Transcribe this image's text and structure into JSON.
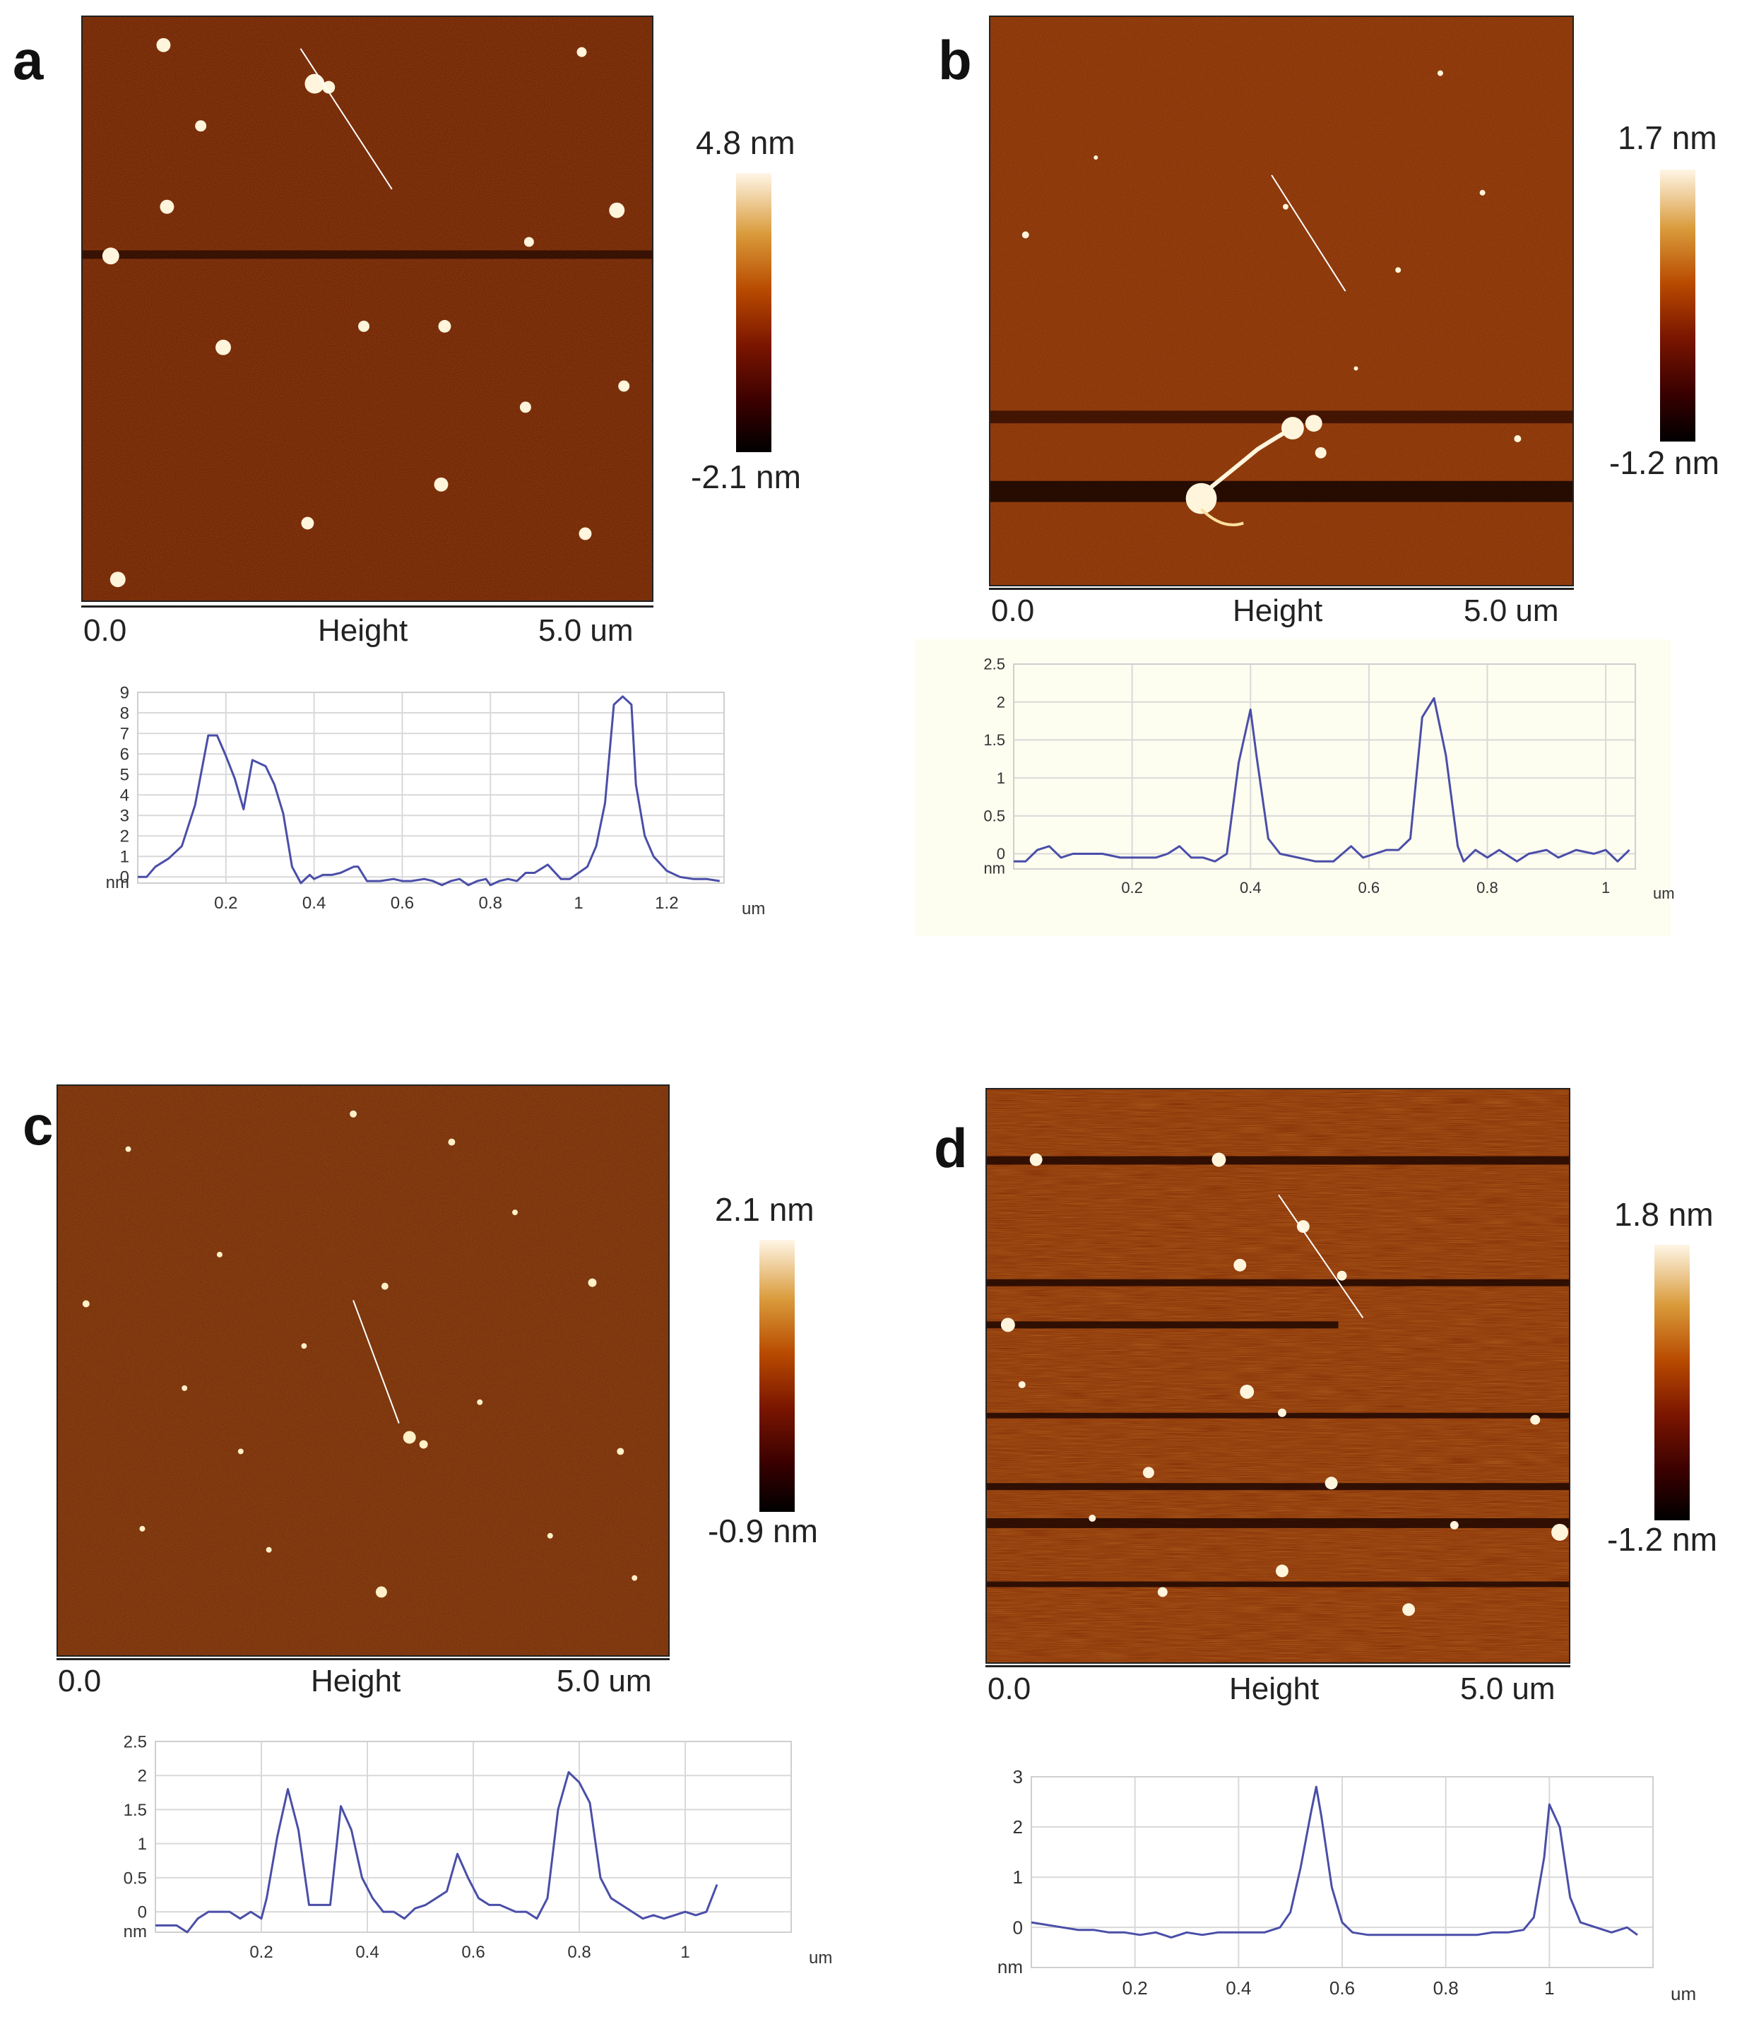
{
  "panels": [
    {
      "letter": "a",
      "image": {
        "scale_start": "0.0",
        "scale_mid": "Height",
        "scale_end": "5.0 um"
      },
      "colorbar": {
        "max": "4.8 nm",
        "min": "-2.1 nm"
      }
    },
    {
      "letter": "b",
      "image": {
        "scale_start": "0.0",
        "scale_mid": "Height",
        "scale_end": "5.0 um"
      },
      "colorbar": {
        "max": "1.7 nm",
        "min": "-1.2 nm"
      }
    },
    {
      "letter": "c",
      "image": {
        "scale_start": "0.0",
        "scale_mid": "Height",
        "scale_end": "5.0 um"
      },
      "colorbar": {
        "max": "2.1 nm",
        "min": "-0.9 nm"
      }
    },
    {
      "letter": "d",
      "image": {
        "scale_start": "0.0",
        "scale_mid": "Height",
        "scale_end": "5.0 um"
      },
      "colorbar": {
        "max": "1.8 nm",
        "min": "-1.2 nm"
      }
    }
  ],
  "colors": {
    "line": "#4a4ea8",
    "grid": "#d9d9d9",
    "profile_bg_b": "#fdfdf0"
  },
  "chart_data": [
    {
      "id": "a",
      "type": "line",
      "xlabel": "um",
      "ylabel": "nm",
      "xlim": [
        0,
        1.33
      ],
      "ylim": [
        -0.3,
        9
      ],
      "xticks": [
        "0.2",
        "0.4",
        "0.6",
        "0.8",
        "1",
        "1.2"
      ],
      "yticks": [
        "0",
        "1",
        "2",
        "3",
        "4",
        "5",
        "6",
        "7",
        "8",
        "9"
      ],
      "x": [
        0,
        0.02,
        0.04,
        0.07,
        0.1,
        0.13,
        0.16,
        0.18,
        0.2,
        0.22,
        0.24,
        0.26,
        0.27,
        0.29,
        0.31,
        0.33,
        0.35,
        0.37,
        0.39,
        0.4,
        0.42,
        0.44,
        0.46,
        0.49,
        0.5,
        0.52,
        0.55,
        0.58,
        0.6,
        0.62,
        0.65,
        0.67,
        0.69,
        0.71,
        0.73,
        0.75,
        0.77,
        0.79,
        0.8,
        0.82,
        0.84,
        0.86,
        0.88,
        0.9,
        0.93,
        0.96,
        0.98,
        1.0,
        1.02,
        1.04,
        1.06,
        1.08,
        1.1,
        1.12,
        1.13,
        1.15,
        1.17,
        1.2,
        1.23,
        1.26,
        1.29,
        1.32
      ],
      "values": [
        0,
        0,
        0.5,
        0.9,
        1.5,
        3.5,
        6.9,
        6.9,
        5.9,
        4.8,
        3.3,
        5.7,
        5.6,
        5.4,
        4.5,
        3.1,
        0.5,
        -0.3,
        0.1,
        -0.1,
        0.1,
        0.1,
        0.2,
        0.5,
        0.5,
        -0.2,
        -0.2,
        -0.1,
        -0.2,
        -0.2,
        -0.1,
        -0.2,
        -0.4,
        -0.2,
        -0.1,
        -0.4,
        -0.2,
        -0.1,
        -0.4,
        -0.2,
        -0.1,
        -0.2,
        0.2,
        0.2,
        0.6,
        -0.1,
        -0.1,
        0.2,
        0.5,
        1.5,
        3.6,
        8.4,
        8.8,
        8.4,
        4.5,
        2.0,
        1.0,
        0.3,
        0.0,
        -0.1,
        -0.1,
        -0.2
      ]
    },
    {
      "id": "b",
      "type": "line",
      "xlabel": "um",
      "ylabel": "nm",
      "xlim": [
        0,
        1.05
      ],
      "ylim": [
        -0.2,
        2.5
      ],
      "xticks": [
        "0.2",
        "0.4",
        "0.6",
        "0.8",
        "1"
      ],
      "yticks": [
        "0",
        "0.5",
        "1",
        "1.5",
        "2",
        "2.5"
      ],
      "x": [
        0,
        0.02,
        0.04,
        0.06,
        0.08,
        0.1,
        0.12,
        0.15,
        0.18,
        0.21,
        0.24,
        0.26,
        0.28,
        0.3,
        0.32,
        0.34,
        0.36,
        0.38,
        0.4,
        0.41,
        0.43,
        0.45,
        0.48,
        0.51,
        0.54,
        0.57,
        0.59,
        0.61,
        0.63,
        0.65,
        0.67,
        0.69,
        0.71,
        0.73,
        0.75,
        0.76,
        0.78,
        0.8,
        0.82,
        0.85,
        0.87,
        0.9,
        0.92,
        0.95,
        0.98,
        1.0,
        1.02,
        1.04
      ],
      "values": [
        -0.1,
        -0.1,
        0.05,
        0.1,
        -0.05,
        0.0,
        0.0,
        0.0,
        -0.05,
        -0.05,
        -0.05,
        0.0,
        0.1,
        -0.05,
        -0.05,
        -0.1,
        0.0,
        1.2,
        1.9,
        1.3,
        0.2,
        0.0,
        -0.05,
        -0.1,
        -0.1,
        0.1,
        -0.05,
        0.0,
        0.05,
        0.05,
        0.2,
        1.8,
        2.05,
        1.3,
        0.1,
        -0.1,
        0.05,
        -0.05,
        0.05,
        -0.1,
        0.0,
        0.05,
        -0.05,
        0.05,
        0.0,
        0.05,
        -0.1,
        0.05
      ]
    },
    {
      "id": "c",
      "type": "line",
      "xlabel": "um",
      "ylabel": "nm",
      "xlim": [
        0,
        1.2
      ],
      "ylim": [
        -0.3,
        2.5
      ],
      "xticks": [
        "0.2",
        "0.4",
        "0.6",
        "0.8",
        "1"
      ],
      "yticks": [
        "0",
        "0.5",
        "1",
        "1.5",
        "2",
        "2.5"
      ],
      "x": [
        0,
        0.02,
        0.04,
        0.06,
        0.08,
        0.1,
        0.12,
        0.14,
        0.16,
        0.18,
        0.2,
        0.21,
        0.23,
        0.25,
        0.27,
        0.29,
        0.31,
        0.33,
        0.35,
        0.37,
        0.39,
        0.41,
        0.43,
        0.45,
        0.47,
        0.49,
        0.51,
        0.53,
        0.55,
        0.57,
        0.59,
        0.61,
        0.63,
        0.65,
        0.68,
        0.7,
        0.72,
        0.74,
        0.76,
        0.78,
        0.8,
        0.82,
        0.84,
        0.86,
        0.88,
        0.9,
        0.92,
        0.94,
        0.96,
        0.98,
        1.0,
        1.02,
        1.04,
        1.06
      ],
      "values": [
        -0.2,
        -0.2,
        -0.2,
        -0.3,
        -0.1,
        0.0,
        0.0,
        0.0,
        -0.1,
        0.0,
        -0.1,
        0.2,
        1.1,
        1.8,
        1.2,
        0.1,
        0.1,
        0.1,
        1.55,
        1.2,
        0.5,
        0.2,
        0.0,
        0.0,
        -0.1,
        0.05,
        0.1,
        0.2,
        0.3,
        0.85,
        0.5,
        0.2,
        0.1,
        0.1,
        0.0,
        0.0,
        -0.1,
        0.2,
        1.5,
        2.05,
        1.9,
        1.6,
        0.5,
        0.2,
        0.1,
        0.0,
        -0.1,
        -0.05,
        -0.1,
        -0.05,
        0.0,
        -0.05,
        0.0,
        0.4
      ]
    },
    {
      "id": "d",
      "type": "line",
      "xlabel": "um",
      "ylabel": "nm",
      "xlim": [
        0,
        1.2
      ],
      "ylim": [
        -0.8,
        3
      ],
      "xticks": [
        "0.2",
        "0.4",
        "0.6",
        "0.8",
        "1"
      ],
      "yticks": [
        "0",
        "1",
        "2",
        "3"
      ],
      "x": [
        0,
        0.03,
        0.06,
        0.09,
        0.12,
        0.15,
        0.18,
        0.21,
        0.24,
        0.27,
        0.3,
        0.33,
        0.36,
        0.39,
        0.42,
        0.45,
        0.48,
        0.5,
        0.52,
        0.54,
        0.55,
        0.56,
        0.58,
        0.6,
        0.62,
        0.65,
        0.68,
        0.71,
        0.74,
        0.77,
        0.8,
        0.83,
        0.86,
        0.89,
        0.92,
        0.95,
        0.97,
        0.99,
        1.0,
        1.02,
        1.04,
        1.06,
        1.09,
        1.12,
        1.15,
        1.17
      ],
      "values": [
        0.1,
        0.05,
        0.0,
        -0.05,
        -0.05,
        -0.1,
        -0.1,
        -0.15,
        -0.1,
        -0.2,
        -0.1,
        -0.15,
        -0.1,
        -0.1,
        -0.1,
        -0.1,
        0.0,
        0.3,
        1.2,
        2.3,
        2.8,
        2.2,
        0.8,
        0.1,
        -0.1,
        -0.15,
        -0.15,
        -0.15,
        -0.15,
        -0.15,
        -0.15,
        -0.15,
        -0.15,
        -0.1,
        -0.1,
        -0.05,
        0.2,
        1.4,
        2.45,
        2.0,
        0.6,
        0.1,
        0.0,
        -0.1,
        0.0,
        -0.15
      ]
    }
  ]
}
